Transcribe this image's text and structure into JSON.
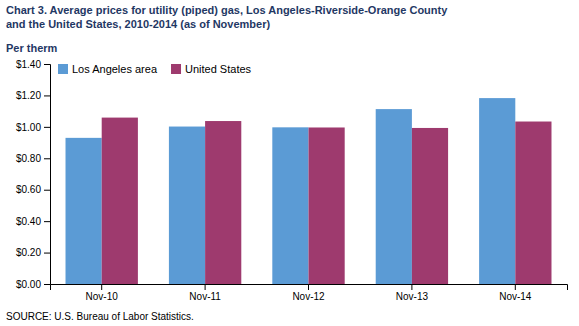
{
  "chart_data": {
    "type": "bar",
    "title": "Chart 3. Average prices for utility (piped) gas, Los Angeles-Riverside-Orange County\nand the United States, 2010-2014  (as of November)",
    "ylabel": "Per therm",
    "annotations": [
      "SOURCE: U.S. Bureau of Labor Statistics."
    ],
    "categories": [
      "Nov-10",
      "Nov-11",
      "Nov-12",
      "Nov-13",
      "Nov-14"
    ],
    "series": [
      {
        "name": "Los Angeles area",
        "color": "#5B9BD5",
        "values": [
          0.93,
          1.002,
          0.997,
          1.113,
          1.183
        ]
      },
      {
        "name": "United States",
        "color": "#9E3A6E",
        "values": [
          1.059,
          1.037,
          0.996,
          0.993,
          1.034
        ]
      }
    ],
    "ylim": [
      0,
      1.4
    ],
    "yticks": [
      {
        "value": 0.0,
        "label": "$0.00"
      },
      {
        "value": 0.2,
        "label": "$0.20"
      },
      {
        "value": 0.4,
        "label": "$0.40"
      },
      {
        "value": 0.6,
        "label": "$0.60"
      },
      {
        "value": 0.8,
        "label": "$0.80"
      },
      {
        "value": 1.0,
        "label": "$1.00"
      },
      {
        "value": 1.2,
        "label": "$1.20"
      },
      {
        "value": 1.4,
        "label": "$1.40"
      }
    ],
    "grid": false,
    "legend": "upper left"
  }
}
